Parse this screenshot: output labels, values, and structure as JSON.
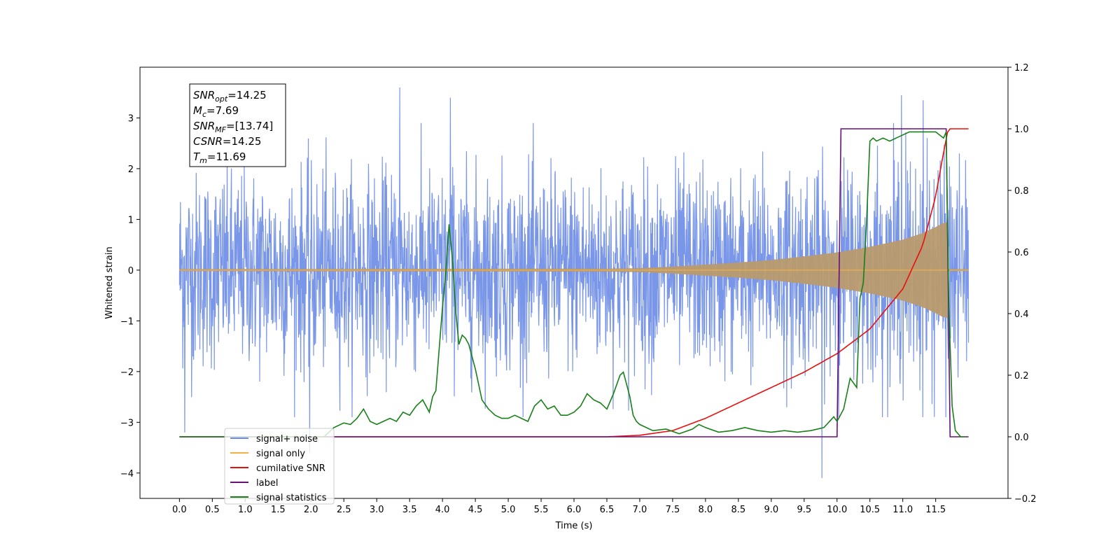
{
  "chart_data": {
    "type": "line",
    "xlabel": "Time (s)",
    "ylabel_left": "Whitened strain",
    "ylabel_right": "",
    "xlim": [
      -0.6,
      12.6
    ],
    "ylim_left": [
      -4.5,
      4.0
    ],
    "ylim_right": [
      -0.2,
      1.2
    ],
    "x_ticks": [
      "0.0",
      "0.5",
      "1.0",
      "1.5",
      "2.0",
      "2.5",
      "3.0",
      "3.5",
      "4.0",
      "4.5",
      "5.0",
      "5.5",
      "6.0",
      "6.5",
      "7.0",
      "7.5",
      "8.0",
      "8.5",
      "9.0",
      "9.5",
      "10.0",
      "10.5",
      "11.0",
      "11.5"
    ],
    "y_ticks_left": [
      "3",
      "2",
      "1",
      "0",
      "−1",
      "−2",
      "−3",
      "−4"
    ],
    "y_ticks_right": [
      "1.2",
      "1.0",
      "0.8",
      "0.6",
      "0.4",
      "0.2",
      "0.0",
      "−0.2"
    ],
    "info_box": {
      "lines": [
        {
          "main": "SNR",
          "sub": "opt",
          "value": "=14.25"
        },
        {
          "main": "M",
          "sub": "c",
          "value": "=7.69"
        },
        {
          "main": "SNR",
          "sub": "MF",
          "value": "=[13.74]"
        },
        {
          "main": "CSNR",
          "sub": "",
          "value": "=14.25"
        },
        {
          "main": "T",
          "sub": "m",
          "value": "=11.69"
        }
      ]
    },
    "legend": {
      "placement": "lower-left",
      "entries": [
        {
          "label": "signal+ noise",
          "color": "#6a8be6"
        },
        {
          "label": "signal only",
          "color": "#f5b041"
        },
        {
          "label": "cumilative SNR",
          "color": "#e8100c"
        },
        {
          "label": "label",
          "color": "#6a0f7a"
        },
        {
          "label": "signal statistics",
          "color": "#188018"
        }
      ]
    },
    "series": [
      {
        "name": "signal+ noise",
        "axis": "left",
        "color": "#6a8be6",
        "x_range": [
          0.0,
          12.0
        ],
        "noise_std": 0.95,
        "peaks": [
          [
            3.35,
            3.6
          ],
          [
            10.98,
            3.45
          ],
          [
            11.31,
            3.35
          ],
          [
            4.12,
            3.4
          ],
          [
            9.77,
            -4.1
          ],
          [
            1.98,
            -3.6
          ],
          [
            0.08,
            -3.2
          ]
        ]
      },
      {
        "name": "signal only",
        "axis": "left",
        "color": "#f5b041",
        "x": [
          0.0,
          6.5,
          7.0,
          7.5,
          8.0,
          8.5,
          9.0,
          9.5,
          10.0,
          10.5,
          11.0,
          11.3,
          11.5,
          11.6,
          11.69,
          12.0
        ],
        "envelope": [
          0.02,
          0.03,
          0.04,
          0.07,
          0.11,
          0.15,
          0.2,
          0.27,
          0.35,
          0.46,
          0.6,
          0.73,
          0.85,
          0.92,
          0.95,
          0.0
        ]
      },
      {
        "name": "cumilative SNR",
        "axis": "right",
        "color": "#e8100c",
        "x": [
          0.0,
          6.5,
          7.0,
          7.5,
          8.0,
          8.5,
          9.0,
          9.5,
          10.0,
          10.5,
          11.0,
          11.3,
          11.5,
          11.6,
          11.69,
          12.0
        ],
        "y": [
          0.0,
          0.0,
          0.005,
          0.02,
          0.06,
          0.11,
          0.16,
          0.21,
          0.27,
          0.35,
          0.48,
          0.62,
          0.78,
          0.9,
          1.0,
          1.0
        ]
      },
      {
        "name": "label",
        "axis": "right",
        "color": "#6a0f7a",
        "x": [
          0.0,
          10.0,
          10.06,
          11.66,
          11.72,
          12.0
        ],
        "y": [
          0.0,
          0.0,
          1.0,
          1.0,
          0.0,
          0.0
        ]
      },
      {
        "name": "signal statistics",
        "axis": "right",
        "color": "#188018",
        "x": [
          0.0,
          2.2,
          2.35,
          2.5,
          2.6,
          2.7,
          2.8,
          2.9,
          3.0,
          3.1,
          3.2,
          3.3,
          3.4,
          3.5,
          3.6,
          3.7,
          3.8,
          3.85,
          3.9,
          4.0,
          4.05,
          4.1,
          4.15,
          4.2,
          4.25,
          4.3,
          4.35,
          4.4,
          4.5,
          4.6,
          4.7,
          4.8,
          4.9,
          5.0,
          5.1,
          5.2,
          5.3,
          5.4,
          5.5,
          5.6,
          5.7,
          5.8,
          5.9,
          6.0,
          6.1,
          6.2,
          6.3,
          6.4,
          6.5,
          6.6,
          6.7,
          6.75,
          6.8,
          6.85,
          6.9,
          6.95,
          7.0,
          7.2,
          7.4,
          7.6,
          7.8,
          7.9,
          8.0,
          8.2,
          8.4,
          8.6,
          8.8,
          9.0,
          9.2,
          9.4,
          9.6,
          9.8,
          9.95,
          10.0,
          10.1,
          10.2,
          10.3,
          10.35,
          10.4,
          10.45,
          10.5,
          10.55,
          10.6,
          10.7,
          10.8,
          10.9,
          11.0,
          11.1,
          11.3,
          11.5,
          11.62,
          11.66,
          11.7,
          11.75,
          11.8,
          11.88,
          11.95
        ],
        "y": [
          0.0,
          0.0,
          0.03,
          0.045,
          0.04,
          0.06,
          0.09,
          0.05,
          0.04,
          0.05,
          0.06,
          0.05,
          0.08,
          0.07,
          0.1,
          0.12,
          0.08,
          0.13,
          0.15,
          0.42,
          0.53,
          0.69,
          0.58,
          0.41,
          0.3,
          0.33,
          0.32,
          0.3,
          0.22,
          0.12,
          0.09,
          0.07,
          0.06,
          0.06,
          0.07,
          0.06,
          0.05,
          0.1,
          0.12,
          0.09,
          0.1,
          0.07,
          0.07,
          0.08,
          0.1,
          0.14,
          0.12,
          0.11,
          0.09,
          0.14,
          0.2,
          0.21,
          0.17,
          0.13,
          0.07,
          0.05,
          0.04,
          0.02,
          0.025,
          0.01,
          0.025,
          0.04,
          0.03,
          0.015,
          0.02,
          0.03,
          0.02,
          0.015,
          0.02,
          0.015,
          0.02,
          0.03,
          0.065,
          0.05,
          0.09,
          0.19,
          0.16,
          0.45,
          0.5,
          0.7,
          0.96,
          0.97,
          0.96,
          0.97,
          0.96,
          0.97,
          0.98,
          0.99,
          0.99,
          0.99,
          0.97,
          0.99,
          0.42,
          0.1,
          0.02,
          0.0,
          0.0
        ]
      }
    ]
  }
}
